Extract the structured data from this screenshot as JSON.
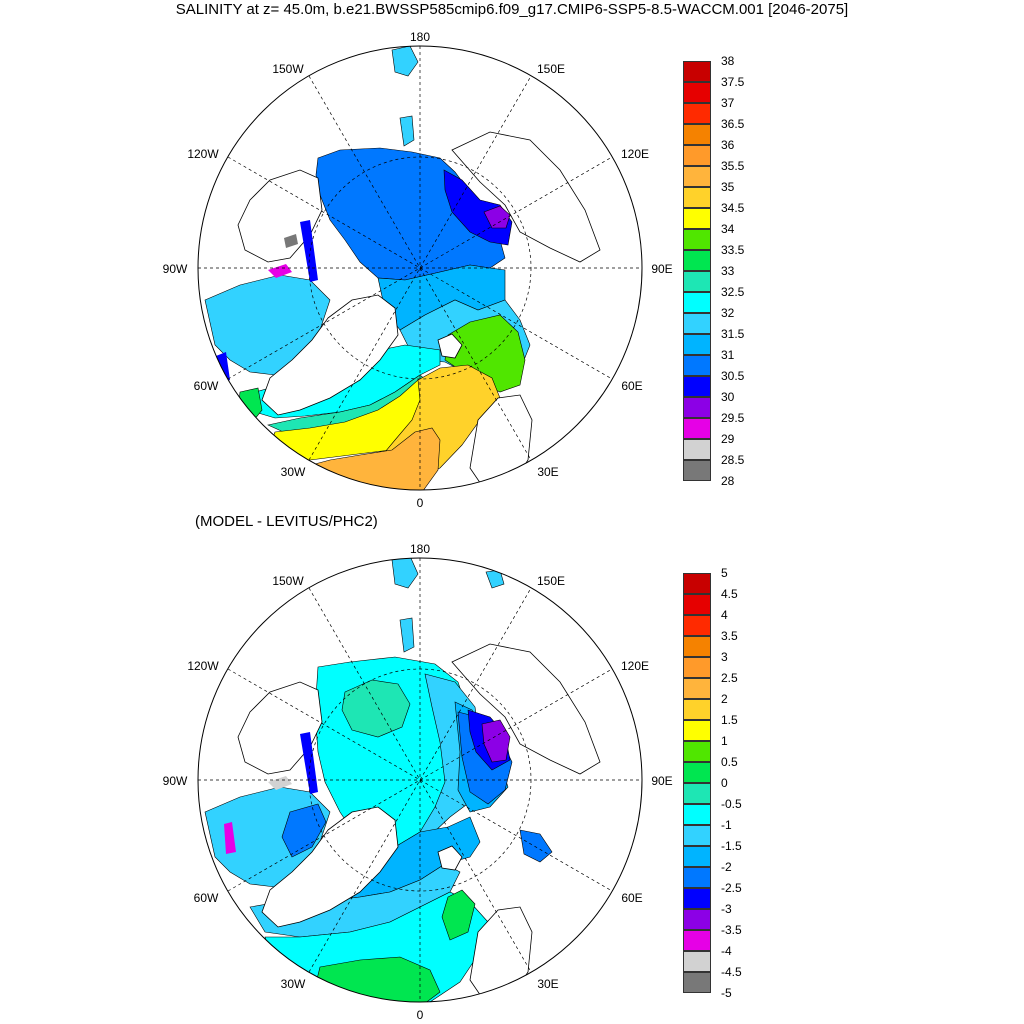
{
  "figure": {
    "title": "SALINITY at z=  45.0m, b.e21.BWSSP585cmip6.f09_g17.CMIP6-SSP5-8.5-WACCM.001 [2046-2075]",
    "subtitle": "(MODEL - LEVITUS/PHC2)"
  },
  "map": {
    "projection": "north-polar-stereographic",
    "longitude_labels": [
      "180",
      "150E",
      "120E",
      "90E",
      "60E",
      "30E",
      "0",
      "30W",
      "60W",
      "90W",
      "120W",
      "150W"
    ],
    "land_color": "#ffffff",
    "coastline_color": "#000000"
  },
  "panels": [
    {
      "id": "salinity",
      "variable": "salinity",
      "colorbar": {
        "ticks": [
          "38",
          "37.5",
          "37",
          "36.5",
          "36",
          "35.5",
          "35",
          "34.5",
          "34",
          "33.5",
          "33",
          "32.5",
          "32",
          "31.5",
          "31",
          "30.5",
          "30",
          "29.5",
          "29",
          "28.5",
          "28"
        ],
        "colors": [
          "#c80000",
          "#e60000",
          "#ff2a00",
          "#f58200",
          "#ff9a2a",
          "#ffb43c",
          "#ffd22a",
          "#ffff00",
          "#50e600",
          "#00e650",
          "#1ee6b4",
          "#00ffff",
          "#32d2ff",
          "#00b4ff",
          "#0078ff",
          "#0000ff",
          "#8c00e6",
          "#e600e6",
          "#d2d2d2",
          "#787878"
        ]
      }
    },
    {
      "id": "difference",
      "variable": "salinity difference",
      "colorbar": {
        "ticks": [
          "5",
          "4.5",
          "4",
          "3.5",
          "3",
          "2.5",
          "2",
          "1.5",
          "1",
          "0.5",
          "0",
          "-0.5",
          "-1",
          "-1.5",
          "-2",
          "-2.5",
          "-3",
          "-3.5",
          "-4",
          "-4.5",
          "-5"
        ],
        "colors": [
          "#c80000",
          "#e60000",
          "#ff2a00",
          "#f58200",
          "#ff9a2a",
          "#ffb43c",
          "#ffd22a",
          "#ffff00",
          "#50e600",
          "#00e650",
          "#1ee6b4",
          "#00ffff",
          "#32d2ff",
          "#00b4ff",
          "#0078ff",
          "#0000ff",
          "#8c00e6",
          "#e600e6",
          "#d2d2d2",
          "#787878"
        ]
      }
    }
  ]
}
